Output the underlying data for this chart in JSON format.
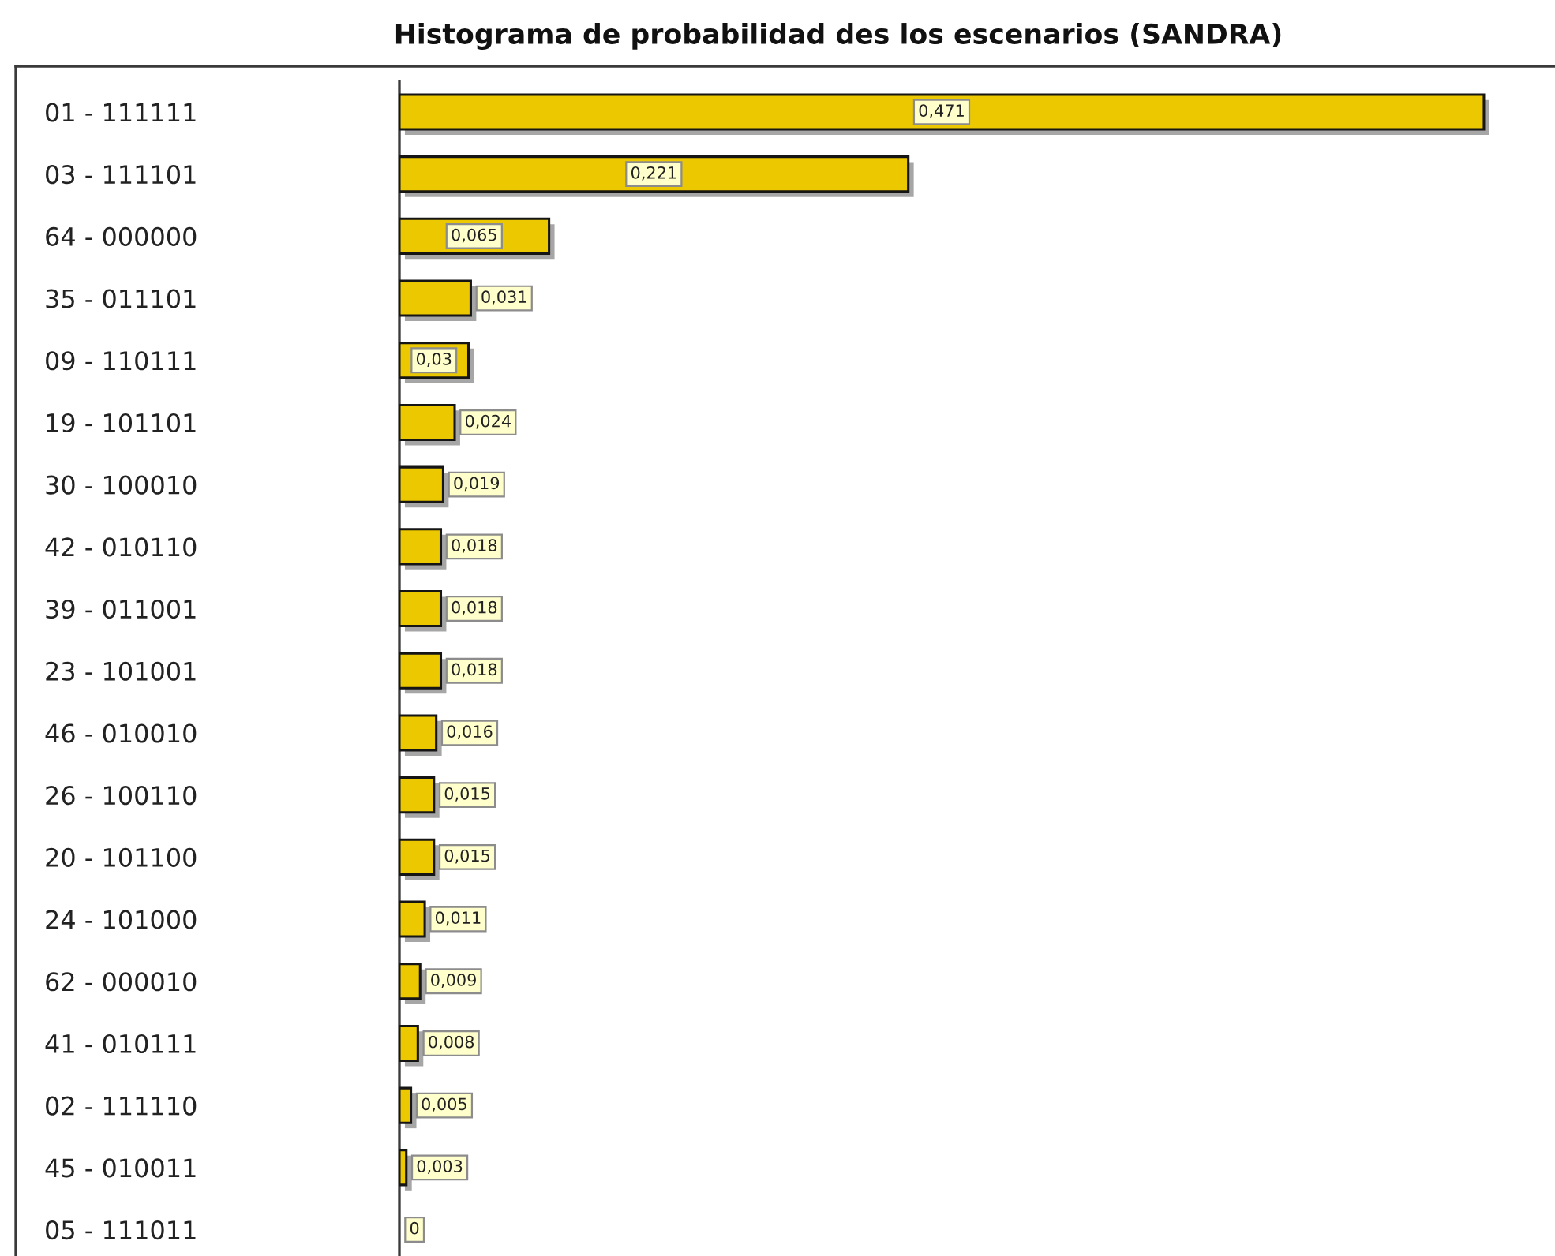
{
  "chart_data": {
    "type": "bar",
    "orientation": "horizontal",
    "title": "Histograma de probabilidad des los escenarios (SANDRA)",
    "categories": [
      "01 - 111111",
      "03 - 111101",
      "64 - 000000",
      "35 - 011101",
      "09 - 110111",
      "19 - 101101",
      "30 - 100010",
      "42 - 010110",
      "39 - 011001",
      "23 - 101001",
      "46 - 010010",
      "26 - 100110",
      "20 - 101100",
      "24 - 101000",
      "62 - 000010",
      "41 - 010111",
      "02 - 111110",
      "45 - 010011",
      "05 - 111011"
    ],
    "values": [
      0.471,
      0.221,
      0.065,
      0.031,
      0.03,
      0.024,
      0.019,
      0.018,
      0.018,
      0.018,
      0.016,
      0.015,
      0.015,
      0.011,
      0.009,
      0.008,
      0.005,
      0.003,
      0
    ],
    "value_labels": [
      "0,471",
      "0,221",
      "0,065",
      "0,031",
      "0,03",
      "0,024",
      "0,019",
      "0,018",
      "0,018",
      "0,018",
      "0,016",
      "0,015",
      "0,015",
      "0,011",
      "0,009",
      "0,008",
      "0,005",
      "0,003",
      "0"
    ],
    "color": "#ecc800",
    "tick_labels": "y"
  }
}
